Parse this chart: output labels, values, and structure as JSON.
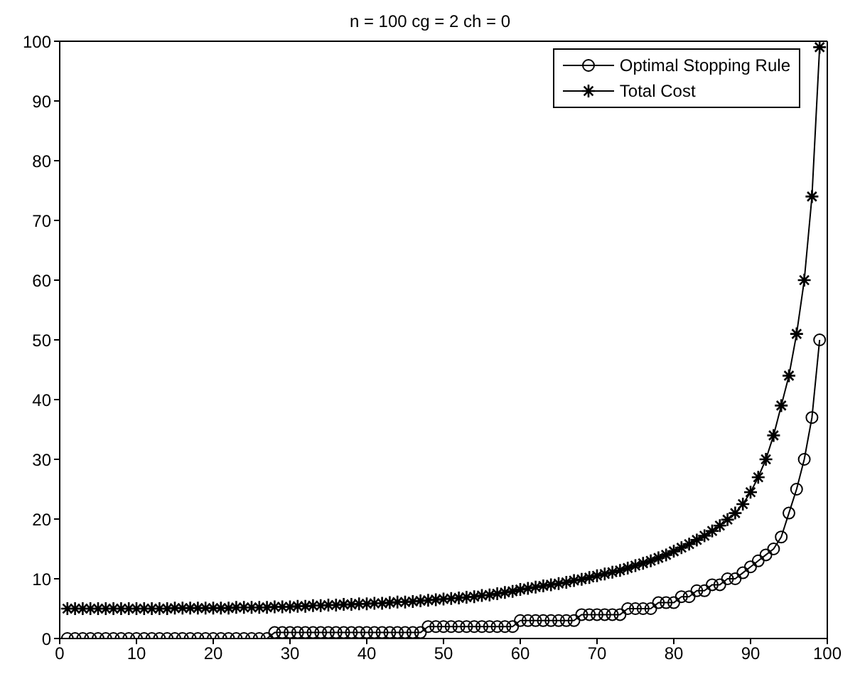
{
  "chart_data": {
    "type": "line",
    "title": "n = 100  cg = 2  ch = 0",
    "x": [
      1,
      2,
      3,
      4,
      5,
      6,
      7,
      8,
      9,
      10,
      11,
      12,
      13,
      14,
      15,
      16,
      17,
      18,
      19,
      20,
      21,
      22,
      23,
      24,
      25,
      26,
      27,
      28,
      29,
      30,
      31,
      32,
      33,
      34,
      35,
      36,
      37,
      38,
      39,
      40,
      41,
      42,
      43,
      44,
      45,
      46,
      47,
      48,
      49,
      50,
      51,
      52,
      53,
      54,
      55,
      56,
      57,
      58,
      59,
      60,
      61,
      62,
      63,
      64,
      65,
      66,
      67,
      68,
      69,
      70,
      71,
      72,
      73,
      74,
      75,
      76,
      77,
      78,
      79,
      80,
      81,
      82,
      83,
      84,
      85,
      86,
      87,
      88,
      89,
      90,
      91,
      92,
      93,
      94,
      95,
      96,
      97,
      98,
      99
    ],
    "series": [
      {
        "name": "Optimal Stopping Rule",
        "color": "#000000",
        "marker": "circle",
        "values": [
          0,
          0,
          0,
          0,
          0,
          0,
          0,
          0,
          0,
          0,
          0,
          0,
          0,
          0,
          0,
          0,
          0,
          0,
          0,
          0,
          0,
          0,
          0,
          0,
          0,
          0,
          0,
          1,
          1,
          1,
          1,
          1,
          1,
          1,
          1,
          1,
          1,
          1,
          1,
          1,
          1,
          1,
          1,
          1,
          1,
          1,
          1,
          2,
          2,
          2,
          2,
          2,
          2,
          2,
          2,
          2,
          2,
          2,
          2,
          3,
          3,
          3,
          3,
          3,
          3,
          3,
          3,
          4,
          4,
          4,
          4,
          4,
          4,
          5,
          5,
          5,
          5,
          6,
          6,
          6,
          7,
          7,
          8,
          8,
          9,
          9,
          10,
          10,
          11,
          12,
          13,
          14,
          15,
          17,
          21,
          25,
          30,
          37,
          50
        ]
      },
      {
        "name": "Total Cost",
        "color": "#000000",
        "marker": "cross",
        "values": [
          5.0,
          5.0,
          5.0,
          5.0,
          5.0,
          5.0,
          5.0,
          5.0,
          5.0,
          5.0,
          5.0,
          5.0,
          5.0,
          5.0,
          5.1,
          5.1,
          5.1,
          5.1,
          5.1,
          5.1,
          5.1,
          5.1,
          5.2,
          5.2,
          5.2,
          5.2,
          5.2,
          5.3,
          5.3,
          5.3,
          5.4,
          5.4,
          5.5,
          5.5,
          5.6,
          5.6,
          5.7,
          5.7,
          5.8,
          5.8,
          5.9,
          5.9,
          6.0,
          6.1,
          6.1,
          6.2,
          6.3,
          6.4,
          6.5,
          6.6,
          6.7,
          6.8,
          6.9,
          7.0,
          7.2,
          7.3,
          7.5,
          7.7,
          7.9,
          8.2,
          8.4,
          8.6,
          8.8,
          9.0,
          9.2,
          9.4,
          9.7,
          9.9,
          10.2,
          10.5,
          10.8,
          11.1,
          11.4,
          11.8,
          12.2,
          12.6,
          13.0,
          13.5,
          14.0,
          14.6,
          15.2,
          15.8,
          16.5,
          17.2,
          18.0,
          18.9,
          19.9,
          21.0,
          22.5,
          24.5,
          27,
          30,
          34,
          39,
          44,
          51,
          60,
          74,
          99
        ]
      }
    ],
    "xlim": [
      0,
      100
    ],
    "xticks": [
      0,
      10,
      20,
      30,
      40,
      50,
      60,
      70,
      80,
      90,
      100
    ],
    "ylim": [
      0,
      100
    ],
    "yticks": [
      0,
      10,
      20,
      30,
      40,
      50,
      60,
      70,
      80,
      90,
      100
    ],
    "grid": false,
    "legend": "top right"
  }
}
